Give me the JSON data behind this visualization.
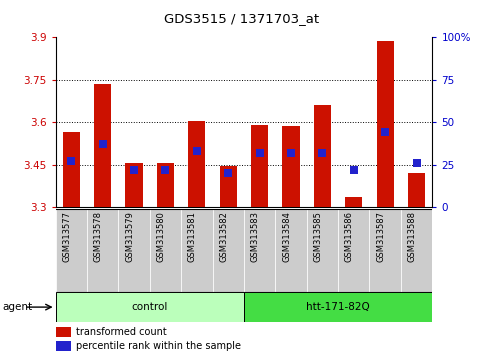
{
  "title": "GDS3515 / 1371703_at",
  "samples": [
    "GSM313577",
    "GSM313578",
    "GSM313579",
    "GSM313580",
    "GSM313581",
    "GSM313582",
    "GSM313583",
    "GSM313584",
    "GSM313585",
    "GSM313586",
    "GSM313587",
    "GSM313588"
  ],
  "transformed_count": [
    3.565,
    3.735,
    3.455,
    3.455,
    3.605,
    3.445,
    3.59,
    3.585,
    3.66,
    3.335,
    3.885,
    3.42
  ],
  "percentile_rank": [
    27,
    37,
    22,
    22,
    33,
    20,
    32,
    32,
    32,
    22,
    44,
    26
  ],
  "ylim_left": [
    3.3,
    3.9
  ],
  "ylim_right": [
    0,
    100
  ],
  "yticks_left": [
    3.3,
    3.45,
    3.6,
    3.75,
    3.9
  ],
  "yticks_right": [
    0,
    25,
    50,
    75,
    100
  ],
  "ytick_labels_left": [
    "3.3",
    "3.45",
    "3.6",
    "3.75",
    "3.9"
  ],
  "ytick_labels_right": [
    "0",
    "25",
    "50",
    "75",
    "100%"
  ],
  "hgrid_values": [
    3.45,
    3.6,
    3.75
  ],
  "bar_color": "#cc1100",
  "dot_color": "#2222cc",
  "bar_width": 0.55,
  "dot_size": 40,
  "groups": [
    {
      "label": "control",
      "start": 0,
      "end": 6,
      "color": "#bbffbb"
    },
    {
      "label": "htt-171-82Q",
      "start": 6,
      "end": 12,
      "color": "#44dd44"
    }
  ],
  "agent_label": "agent",
  "legend_bar_label": "transformed count",
  "legend_dot_label": "percentile rank within the sample",
  "left_tick_color": "#cc0000",
  "right_tick_color": "#0000cc",
  "xtick_bg": "#cccccc"
}
